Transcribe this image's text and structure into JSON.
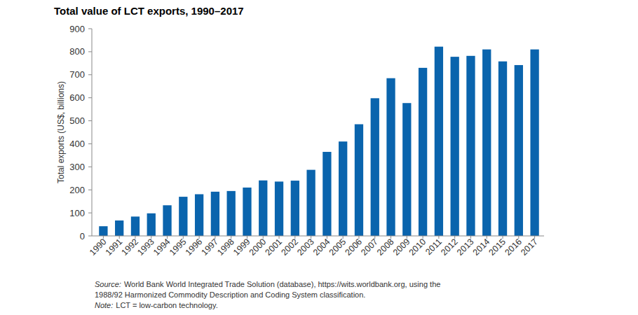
{
  "chart_data": {
    "type": "bar",
    "title": "Total value of LCT exports, 1990–2017",
    "y_label": "Total exports (US$, billions)",
    "categories": [
      "1990",
      "1991",
      "1992",
      "1993",
      "1994",
      "1995",
      "1996",
      "1997",
      "1998",
      "1999",
      "2000",
      "2001",
      "2002",
      "2003",
      "2004",
      "2005",
      "2006",
      "2007",
      "2008",
      "2009",
      "2010",
      "2011",
      "2012",
      "2013",
      "2014",
      "2015",
      "2016",
      "2017"
    ],
    "values": [
      42,
      67,
      84,
      98,
      133,
      170,
      181,
      192,
      195,
      210,
      241,
      236,
      240,
      287,
      365,
      410,
      485,
      598,
      685,
      577,
      730,
      822,
      778,
      782,
      810,
      758,
      742,
      810
    ],
    "color": "#0a64ad",
    "ylim": [
      0,
      900
    ],
    "yticks": [
      0,
      100,
      200,
      300,
      400,
      500,
      600,
      700,
      800,
      900
    ],
    "grid": false,
    "source_label": "Source:",
    "source": [
      "World Bank World Integrated Trade Solution (database), https://wits.worldbank.org, using the",
      "1988/92 Harmonized Commodity Description and Coding System classification."
    ],
    "note_label": "Note:",
    "note": "LCT = low-carbon technology."
  }
}
